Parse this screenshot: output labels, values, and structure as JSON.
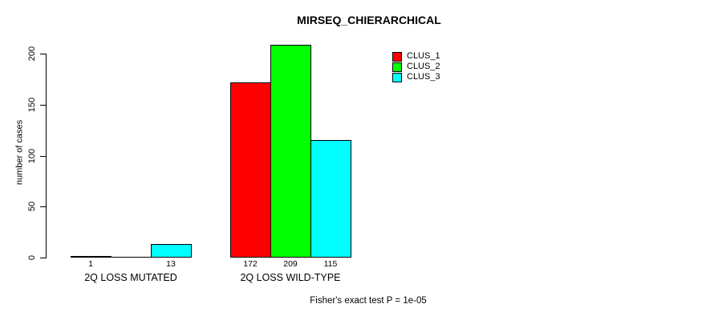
{
  "title": "MIRSEQ_CHIERARCHICAL",
  "footer": "Fisher's exact test P = 1e-05",
  "colors": {
    "background": "#ffffff",
    "axis": "#000000",
    "clus_1": "#ff0000",
    "clus_2": "#00ff00",
    "clus_3": "#00ffff"
  },
  "chart_data": {
    "type": "bar",
    "title": "MIRSEQ_CHIERARCHICAL",
    "xlabel": "",
    "ylabel": "number of cases",
    "categories": [
      "2Q LOSS MUTATED",
      "2Q LOSS WILD-TYPE"
    ],
    "series": [
      {
        "name": "CLUS_1",
        "color": "#ff0000",
        "values": [
          1,
          172
        ]
      },
      {
        "name": "CLUS_2",
        "color": "#00ff00",
        "values": [
          0,
          209
        ]
      },
      {
        "name": "CLUS_3",
        "color": "#00ffff",
        "values": [
          13,
          115
        ]
      }
    ],
    "value_labels": [
      [
        "1",
        "",
        "13"
      ],
      [
        "172",
        "209",
        "115"
      ]
    ],
    "y_ticks": [
      0,
      50,
      100,
      150,
      200
    ],
    "ylim": [
      0,
      200
    ],
    "grid": false,
    "bar_outline": "#000000",
    "legend_position": "top-right",
    "legend": [
      "CLUS_1",
      "CLUS_2",
      "CLUS_3"
    ],
    "annotation": "Fisher's exact test P = 1e-05"
  }
}
